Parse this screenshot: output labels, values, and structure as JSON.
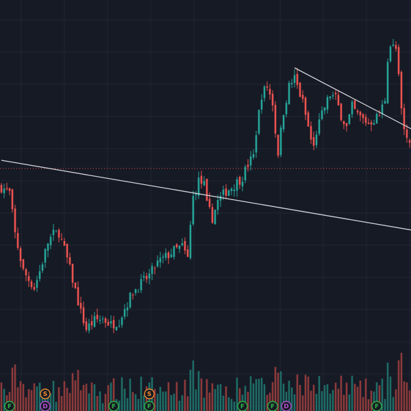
{
  "theme": {
    "background": "#161a25",
    "grid": "#232734",
    "up": "#26a69a",
    "down": "#ef5350",
    "vol_up": "#1e6d66",
    "vol_down": "#8e3a3b",
    "trendline": "#d6d6dc",
    "price_line": "#ef5350",
    "event_f": "#2fb344",
    "event_s": "#ef8a2f",
    "event_d": "#b34fd1"
  },
  "chart_data": {
    "type": "candlestick",
    "title": "",
    "xlabel": "",
    "ylabel": "",
    "grid": true,
    "ylim": [
      0,
      100
    ],
    "candles": [],
    "trendlines": [
      {
        "name": "long-trendline",
        "from": {
          "x": 0,
          "y": 61.0
        },
        "to": {
          "x": 150,
          "y": 44.0
        }
      },
      {
        "name": "upper-trendline",
        "from": {
          "x": 107,
          "y": 83.5
        },
        "to": {
          "x": 150,
          "y": 68.5
        }
      }
    ],
    "price_line": 59.0,
    "events": [
      {
        "label": "D",
        "x": 16,
        "kind": "dividend"
      },
      {
        "label": "S",
        "x": 16,
        "kind": "split"
      },
      {
        "label": "F",
        "x": 3,
        "kind": "financial"
      },
      {
        "label": "F",
        "x": 41,
        "kind": "financial"
      },
      {
        "label": "F",
        "x": 54,
        "kind": "financial"
      },
      {
        "label": "S",
        "x": 54,
        "kind": "split"
      },
      {
        "label": "F",
        "x": 88,
        "kind": "financial"
      },
      {
        "label": "F",
        "x": 99,
        "kind": "financial"
      },
      {
        "label": "D",
        "x": 104,
        "kind": "dividend"
      },
      {
        "label": "F",
        "x": 137,
        "kind": "financial"
      }
    ]
  }
}
